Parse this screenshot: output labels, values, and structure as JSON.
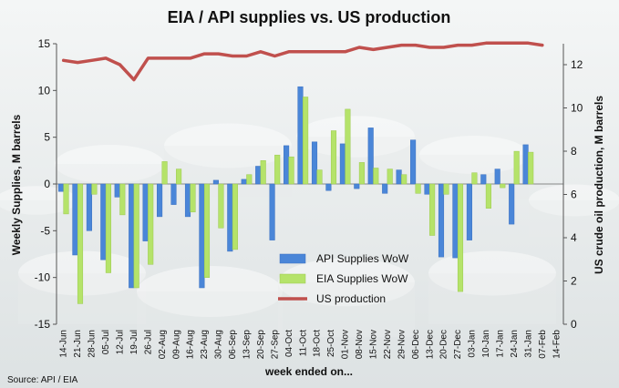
{
  "chart_data": {
    "type": "bar",
    "title": "EIA / API supplies vs. US production",
    "xlabel": "week ended on...",
    "ylabel": "Weekly Supplies, M barrels",
    "y2label": "US crude oil production, M barrels",
    "source": "Source: API / EIA",
    "ylim": [
      -15,
      15
    ],
    "yticks": [
      -15,
      -10,
      -5,
      0,
      5,
      10,
      15
    ],
    "y2lim": [
      0,
      13
    ],
    "y2ticks": [
      0,
      2,
      4,
      6,
      8,
      10,
      12
    ],
    "legend_position": "center",
    "categories": [
      "14-Jun",
      "21-Jun",
      "28-Jun",
      "05-Jul",
      "12-Jul",
      "19-Jul",
      "26-Jul",
      "02-Aug",
      "09-Aug",
      "16-Aug",
      "23-Aug",
      "30-Aug",
      "06-Sep",
      "13-Sep",
      "20-Sep",
      "27-Sep",
      "04-Oct",
      "11-Oct",
      "18-Oct",
      "25-Oct",
      "01-Nov",
      "08-Nov",
      "15-Nov",
      "22-Nov",
      "29-Nov",
      "06-Dec",
      "13-Dec",
      "20-Dec",
      "27-Dec",
      "03-Jan",
      "10-Jan",
      "17-Jan",
      "24-Jan",
      "31-Jan",
      "07-Feb",
      "14-Feb"
    ],
    "series": [
      {
        "name": "API Supplies WoW",
        "color": "#4a86d8",
        "values": [
          -0.8,
          -7.6,
          -5.0,
          -8.1,
          -1.4,
          -11.1,
          -6.1,
          -3.5,
          -2.2,
          -3.5,
          -11.1,
          0.4,
          -7.2,
          0.5,
          1.9,
          -6.0,
          4.1,
          10.4,
          4.5,
          -0.7,
          4.3,
          -0.5,
          6.0,
          -1.0,
          1.5,
          4.7,
          -1.1,
          -7.8,
          -7.9,
          -6.0,
          1.0,
          1.6,
          -4.3,
          4.2,
          null,
          null
        ]
      },
      {
        "name": "EIA Supplies WoW",
        "color": "#b5e36a",
        "values": [
          -3.2,
          -12.8,
          -1.1,
          -9.5,
          -3.3,
          -11.1,
          -8.6,
          2.4,
          1.6,
          -3.0,
          -10.0,
          -4.7,
          -7.0,
          1.0,
          2.5,
          3.1,
          2.9,
          9.3,
          1.5,
          5.7,
          8.0,
          2.3,
          1.7,
          1.6,
          1.0,
          -1.0,
          -5.5,
          -1.1,
          -11.5,
          1.2,
          -2.6,
          -0.4,
          3.5,
          3.4,
          null,
          null
        ]
      },
      {
        "name": "US production",
        "color": "#c0504d",
        "axis": "right",
        "values": [
          12.2,
          12.1,
          12.2,
          12.3,
          12.0,
          11.3,
          12.3,
          12.3,
          12.3,
          12.3,
          12.5,
          12.5,
          12.4,
          12.4,
          12.6,
          12.4,
          12.6,
          12.6,
          12.6,
          12.6,
          12.6,
          12.8,
          12.7,
          12.8,
          12.9,
          12.9,
          12.8,
          12.8,
          12.9,
          12.9,
          13.0,
          13.0,
          13.0,
          13.0,
          12.9,
          null
        ]
      }
    ]
  }
}
